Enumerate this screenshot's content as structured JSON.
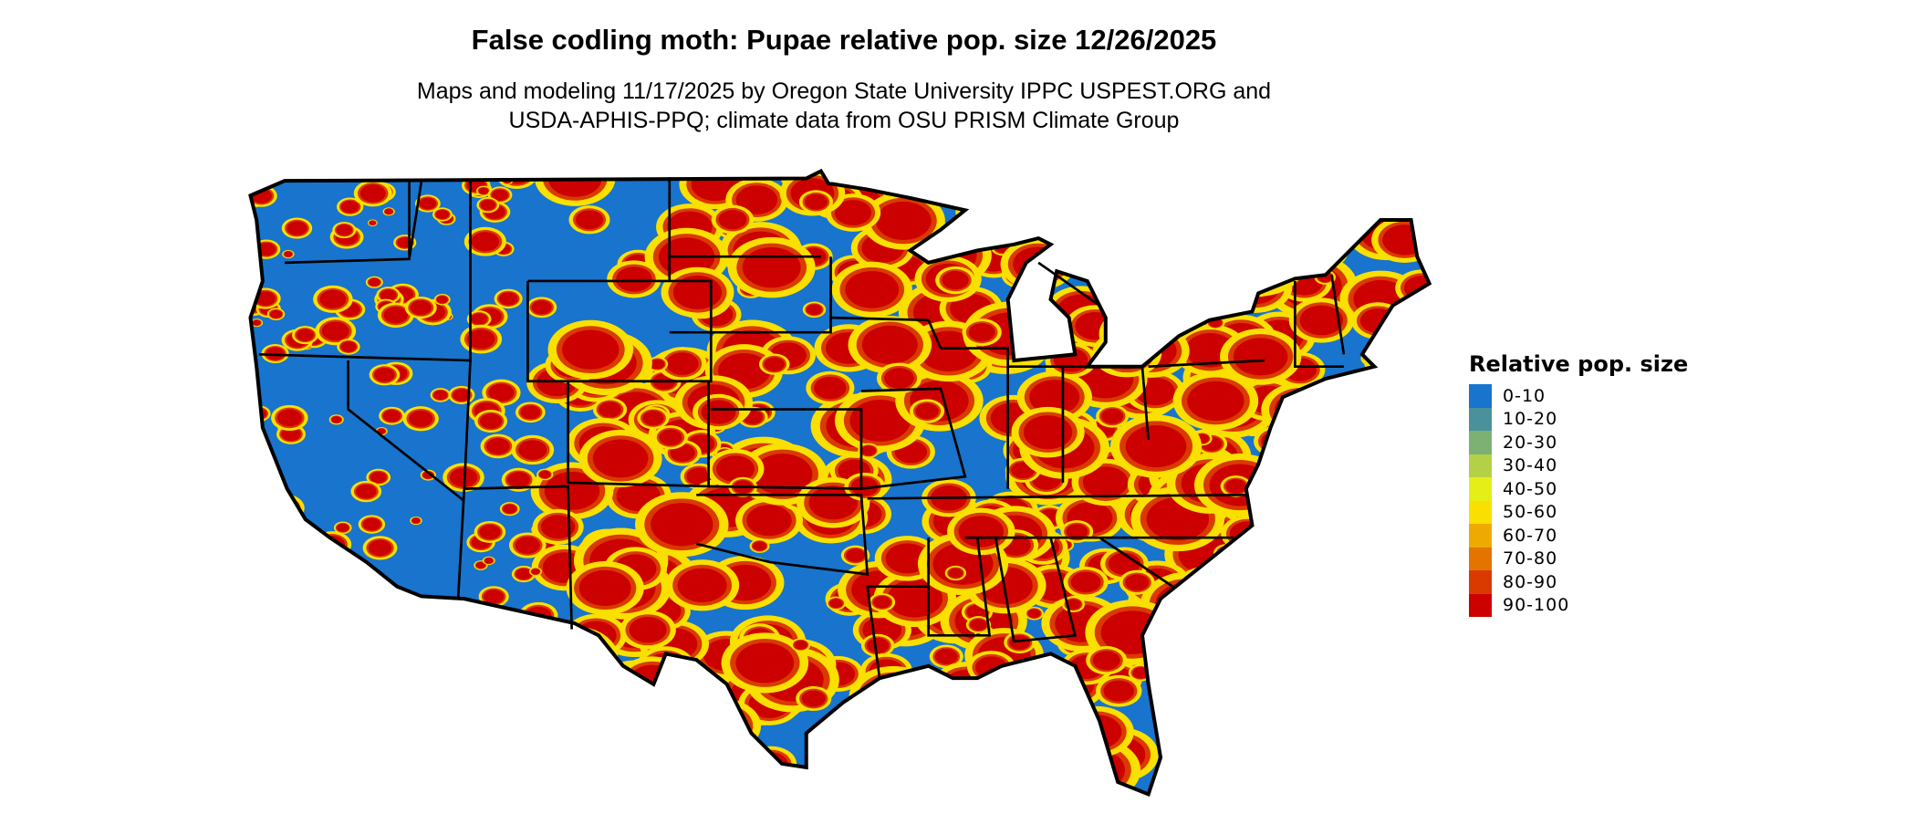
{
  "title": "False codling moth: Pupae relative pop. size 12/26/2025",
  "subtitle_line1": "Maps and modeling 11/17/2025 by Oregon State University IPPC USPEST.ORG and",
  "subtitle_line2": "USDA-APHIS-PPQ; climate data from OSU PRISM Climate Group",
  "legend": {
    "title": "Relative pop. size",
    "items": [
      {
        "label": "0-10",
        "color": "#1874CD"
      },
      {
        "label": "10-20",
        "color": "#4A919B"
      },
      {
        "label": "20-30",
        "color": "#7DB073"
      },
      {
        "label": "30-40",
        "color": "#B4D046"
      },
      {
        "label": "40-50",
        "color": "#E6EE17"
      },
      {
        "label": "50-60",
        "color": "#F9E000"
      },
      {
        "label": "60-70",
        "color": "#EEAA00"
      },
      {
        "label": "70-80",
        "color": "#E47400"
      },
      {
        "label": "80-90",
        "color": "#DA3A00"
      },
      {
        "label": "90-100",
        "color": "#CD0000"
      }
    ]
  },
  "map": {
    "region": "Contiguous United States",
    "base_color": "#1874CD",
    "border_color": "#000000"
  }
}
